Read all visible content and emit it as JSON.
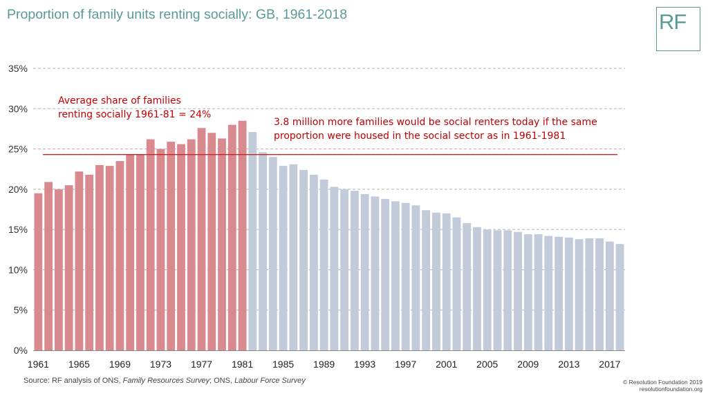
{
  "header": {
    "title": "Proportion of family units renting socially: GB, 1961-2018",
    "logo_text": "RF"
  },
  "footer": {
    "source_prefix": "Source: RF analysis of ONS, ",
    "source_italic_1": "Family Resources Survey",
    "source_mid": "; ONS, ",
    "source_italic_2": "Labour Force Survey",
    "copyright_line1": "© Resolution Foundation 2019",
    "copyright_line2": "resolutionfoundation.org"
  },
  "annotations": {
    "average_line1": "Average share of families",
    "average_line2": "renting socially 1961-81 = 24%",
    "note_line1": "3.8 million more families would be social renters today if the same",
    "note_line2": "proportion were housed in the social sector as in 1961-1981"
  },
  "colors": {
    "highlight": "#d98a8f",
    "rest": "#c2cbd9",
    "average_line": "#cc2222",
    "annotation_text": "#c00000",
    "title": "#5a9a96"
  },
  "chart_data": {
    "type": "bar",
    "x": [
      1961,
      1962,
      1963,
      1964,
      1965,
      1966,
      1967,
      1968,
      1969,
      1970,
      1971,
      1972,
      1973,
      1974,
      1975,
      1976,
      1977,
      1978,
      1979,
      1980,
      1981,
      1982,
      1983,
      1984,
      1985,
      1986,
      1987,
      1988,
      1989,
      1990,
      1991,
      1992,
      1993,
      1994,
      1995,
      1996,
      1997,
      1998,
      1999,
      2000,
      2001,
      2002,
      2003,
      2004,
      2005,
      2006,
      2007,
      2008,
      2009,
      2010,
      2011,
      2012,
      2013,
      2014,
      2015,
      2016,
      2017,
      2018
    ],
    "values": [
      19.5,
      20.9,
      20.0,
      20.5,
      22.2,
      21.8,
      23.0,
      22.9,
      23.5,
      24.3,
      24.3,
      26.2,
      25.0,
      25.9,
      25.6,
      26.2,
      27.6,
      27.0,
      26.3,
      28.0,
      28.5,
      27.1,
      24.6,
      24.0,
      22.9,
      23.1,
      22.4,
      21.8,
      21.2,
      20.3,
      20.0,
      19.8,
      19.4,
      19.1,
      18.8,
      18.5,
      18.3,
      18.0,
      17.4,
      17.1,
      17.0,
      16.5,
      15.8,
      15.3,
      15.0,
      14.9,
      14.9,
      14.7,
      14.4,
      14.4,
      14.2,
      14.1,
      14.0,
      13.8,
      13.9,
      13.9,
      13.5,
      13.2
    ],
    "highlight_range": [
      1961,
      1981
    ],
    "average_value": 24.3,
    "tick_labels": [
      "1961",
      "1965",
      "1969",
      "1973",
      "1977",
      "1981",
      "1985",
      "1989",
      "1993",
      "1997",
      "2001",
      "2005",
      "2009",
      "2013",
      "2017"
    ],
    "ytick_labels": [
      "0%",
      "5%",
      "10%",
      "15%",
      "20%",
      "25%",
      "30%",
      "35%"
    ],
    "ylim": [
      0,
      35
    ],
    "ystep": 5,
    "grid": true,
    "xlabel": "",
    "ylabel": ""
  }
}
